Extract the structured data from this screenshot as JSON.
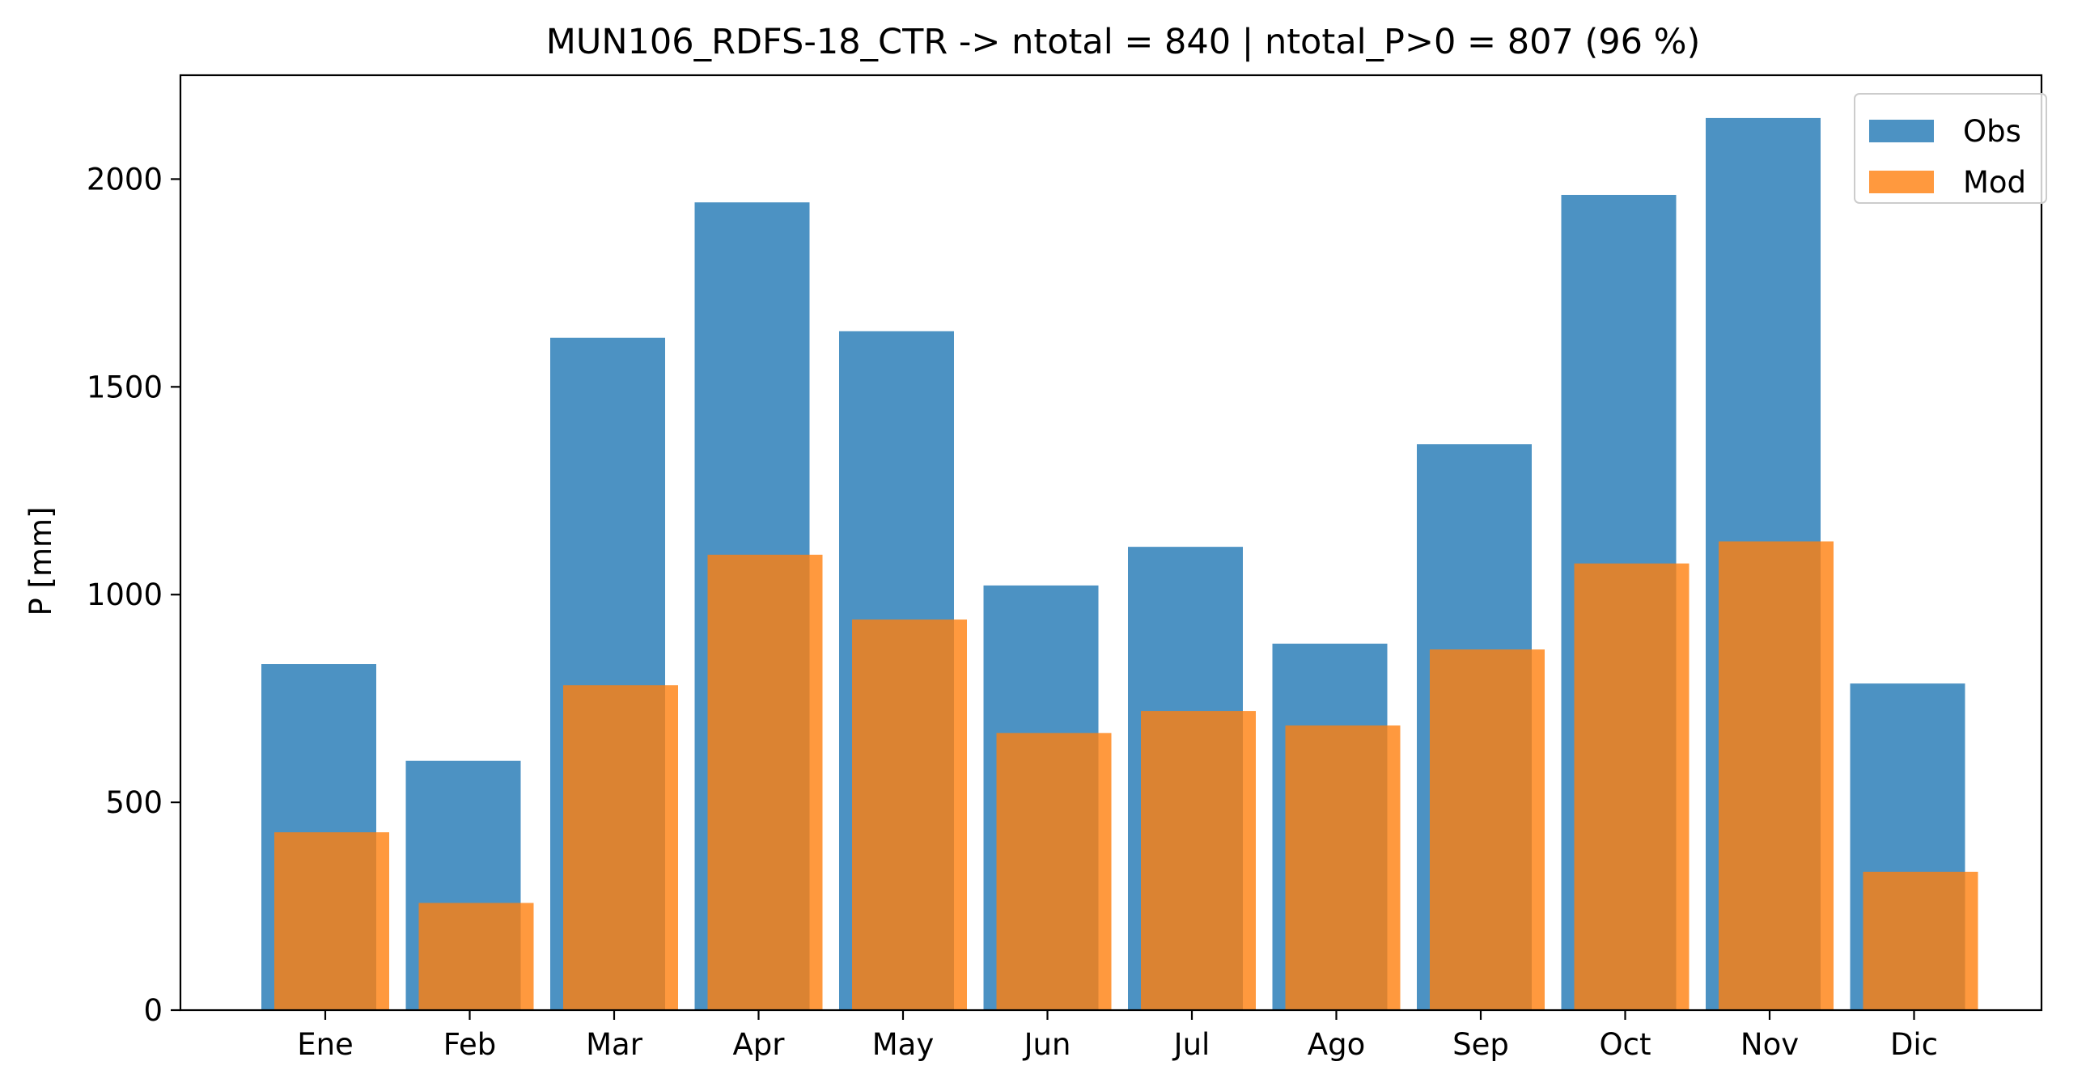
{
  "chart_data": {
    "type": "bar",
    "title": "MUN106_RDFS-18_CTR -> ntotal = 840 | ntotal_P>0 = 807 (96 %)",
    "xlabel": "",
    "ylabel": "P [mm]",
    "categories": [
      "Ene",
      "Feb",
      "Mar",
      "Apr",
      "May",
      "Jun",
      "Jul",
      "Ago",
      "Sep",
      "Oct",
      "Nov",
      "Dic"
    ],
    "series": [
      {
        "name": "Obs",
        "color": "#1f77b4",
        "values": [
          833,
          600,
          1618,
          1944,
          1634,
          1022,
          1115,
          882,
          1362,
          1962,
          2147,
          786
        ]
      },
      {
        "name": "Mod",
        "color": "#ff7f0e",
        "values": [
          428,
          258,
          782,
          1096,
          940,
          667,
          720,
          685,
          868,
          1075,
          1128,
          333
        ]
      }
    ],
    "ylim": [
      0,
      2250
    ],
    "yticks": [
      0,
      500,
      1000,
      1500,
      2000
    ],
    "grid": false,
    "legend": "upper right",
    "bar_alpha": 0.8
  }
}
